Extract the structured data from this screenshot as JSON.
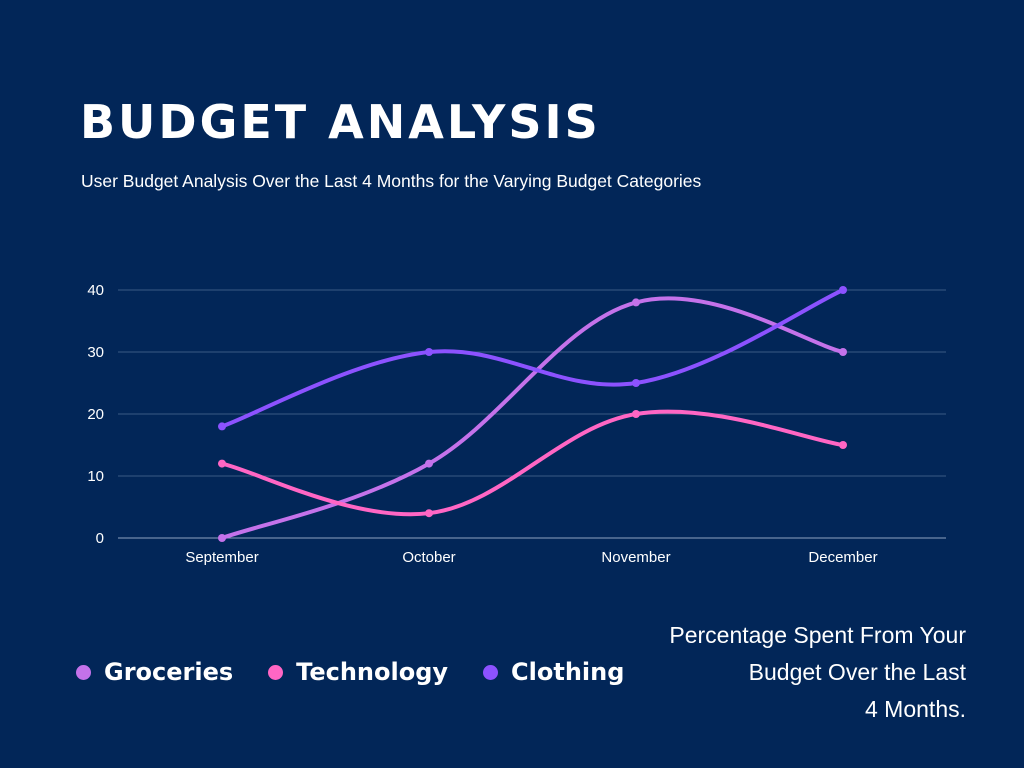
{
  "title": "BUDGET ANALYSIS",
  "subtitle": "User Budget Analysis Over the Last 4 Months for the Varying Budget Categories",
  "note": "Percentage Spent From Your\nBudget Over the  Last\n4 Months.",
  "colors": {
    "background": "#022658",
    "gridline": "#3a5a85",
    "text": "#ffffff"
  },
  "chart_data": {
    "type": "line",
    "title": "",
    "xlabel": "",
    "ylabel": "",
    "categories": [
      "September",
      "October",
      "November",
      "December"
    ],
    "yticks": [
      0,
      10,
      20,
      30,
      40
    ],
    "ylim": [
      0,
      40
    ],
    "grid": true,
    "smooth": true,
    "legend_position": "bottom-left",
    "series": [
      {
        "name": "Groceries",
        "color": "#c472ea",
        "values": [
          0,
          12,
          38,
          30
        ]
      },
      {
        "name": "Technology",
        "color": "#ff66c4",
        "values": [
          12,
          4,
          20,
          15
        ]
      },
      {
        "name": "Clothing",
        "color": "#8c52ff",
        "values": [
          18,
          30,
          25,
          40
        ]
      }
    ]
  }
}
